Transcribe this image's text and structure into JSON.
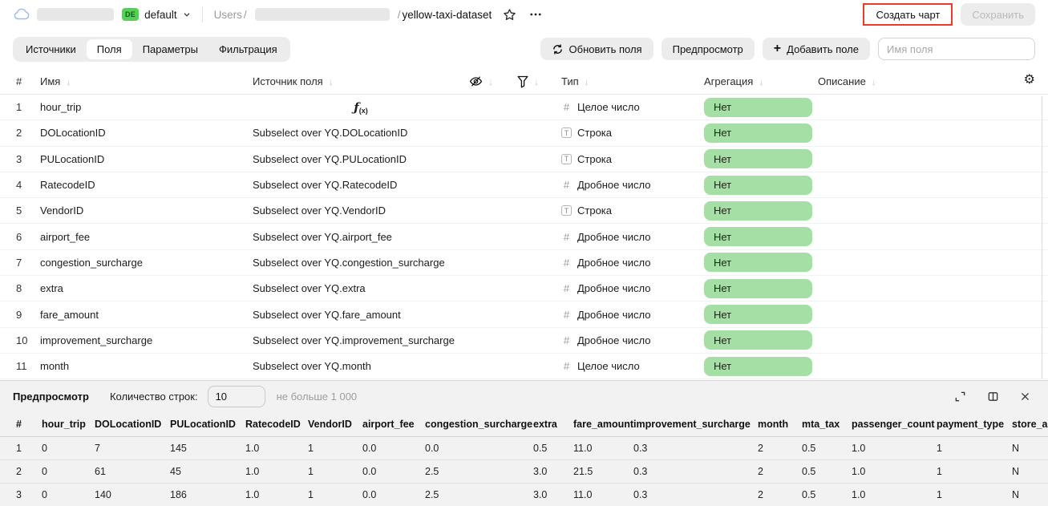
{
  "topbar": {
    "env_badge": "DE",
    "env_name": "default",
    "breadcrumb_root": "Users",
    "separator": "/",
    "dataset_name": "yellow-taxi-dataset",
    "create_chart_label": "Создать чарт",
    "save_label": "Сохранить",
    "highlight_color": "#f0392b"
  },
  "toolbar": {
    "tabs": [
      "Источники",
      "Поля",
      "Параметры",
      "Фильтрация"
    ],
    "active_tab": "Поля",
    "refresh_label": "Обновить поля",
    "preview_label": "Предпросмотр",
    "add_field_label": "Добавить поле",
    "field_name_placeholder": "Имя поля"
  },
  "fields_table": {
    "columns": {
      "num": "#",
      "name": "Имя",
      "source": "Источник поля",
      "type": "Тип",
      "aggregation": "Агрегация",
      "description": "Описание"
    },
    "aggregation_badge_color": "#a6dfa6",
    "rows": [
      {
        "num": "1",
        "name": "hour_trip",
        "source": "",
        "formula": true,
        "type_kind": "number",
        "type": "Целое число",
        "aggregation": "Нет",
        "description": ""
      },
      {
        "num": "2",
        "name": "DOLocationID",
        "source": "Subselect over YQ.DOLocationID",
        "formula": false,
        "type_kind": "string",
        "type": "Строка",
        "aggregation": "Нет",
        "description": ""
      },
      {
        "num": "3",
        "name": "PULocationID",
        "source": "Subselect over YQ.PULocationID",
        "formula": false,
        "type_kind": "string",
        "type": "Строка",
        "aggregation": "Нет",
        "description": ""
      },
      {
        "num": "4",
        "name": "RatecodeID",
        "source": "Subselect over YQ.RatecodeID",
        "formula": false,
        "type_kind": "number",
        "type": "Дробное число",
        "aggregation": "Нет",
        "description": ""
      },
      {
        "num": "5",
        "name": "VendorID",
        "source": "Subselect over YQ.VendorID",
        "formula": false,
        "type_kind": "string",
        "type": "Строка",
        "aggregation": "Нет",
        "description": ""
      },
      {
        "num": "6",
        "name": "airport_fee",
        "source": "Subselect over YQ.airport_fee",
        "formula": false,
        "type_kind": "number",
        "type": "Дробное число",
        "aggregation": "Нет",
        "description": ""
      },
      {
        "num": "7",
        "name": "congestion_surcharge",
        "source": "Subselect over YQ.congestion_surcharge",
        "formula": false,
        "type_kind": "number",
        "type": "Дробное число",
        "aggregation": "Нет",
        "description": ""
      },
      {
        "num": "8",
        "name": "extra",
        "source": "Subselect over YQ.extra",
        "formula": false,
        "type_kind": "number",
        "type": "Дробное число",
        "aggregation": "Нет",
        "description": ""
      },
      {
        "num": "9",
        "name": "fare_amount",
        "source": "Subselect over YQ.fare_amount",
        "formula": false,
        "type_kind": "number",
        "type": "Дробное число",
        "aggregation": "Нет",
        "description": ""
      },
      {
        "num": "10",
        "name": "improvement_surcharge",
        "source": "Subselect over YQ.improvement_surcharge",
        "formula": false,
        "type_kind": "number",
        "type": "Дробное число",
        "aggregation": "Нет",
        "description": ""
      },
      {
        "num": "11",
        "name": "month",
        "source": "Subselect over YQ.month",
        "formula": false,
        "type_kind": "number",
        "type": "Целое число",
        "aggregation": "Нет",
        "description": ""
      }
    ]
  },
  "preview": {
    "title": "Предпросмотр",
    "row_count_label": "Количество строк:",
    "row_count_value": "10",
    "row_count_hint": "не больше 1 000",
    "columns": [
      "#",
      "hour_trip",
      "DOLocationID",
      "PULocationID",
      "RatecodeID",
      "VendorID",
      "airport_fee",
      "congestion_surcharge",
      "extra",
      "fare_amount",
      "improvement_surcharge",
      "month",
      "mta_tax",
      "passenger_count",
      "payment_type",
      "store_and_fwd_flag"
    ],
    "rows": [
      [
        "1",
        "0",
        "7",
        "145",
        "1.0",
        "1",
        "0.0",
        "0.0",
        "0.5",
        "11.0",
        "0.3",
        "2",
        "0.5",
        "1.0",
        "1",
        "N"
      ],
      [
        "2",
        "0",
        "61",
        "45",
        "1.0",
        "1",
        "0.0",
        "2.5",
        "3.0",
        "21.5",
        "0.3",
        "2",
        "0.5",
        "1.0",
        "1",
        "N"
      ],
      [
        "3",
        "0",
        "140",
        "186",
        "1.0",
        "1",
        "0.0",
        "2.5",
        "3.0",
        "11.0",
        "0.3",
        "2",
        "0.5",
        "1.0",
        "1",
        "N"
      ]
    ]
  }
}
